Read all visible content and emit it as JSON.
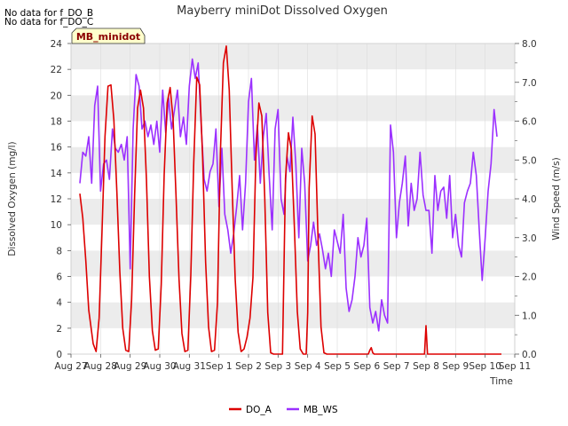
{
  "chart_data": {
    "type": "line",
    "title": "Mayberry miniDot Dissolved Oxygen",
    "no_data_notes": [
      "No data for f_DO_B",
      "No data for f_DO_C"
    ],
    "site_label": "MB_minidot",
    "xlabel": "Time",
    "ylabel_left": "Dissolved Oxygen (mg/l)",
    "ylabel_right": "Wind Speed (m/s)",
    "xlim": [
      0,
      15
    ],
    "ylim_left": [
      0,
      24
    ],
    "ylim_right": [
      0,
      8
    ],
    "x_ticks": [
      {
        "x": 0,
        "label": "Aug 27"
      },
      {
        "x": 1,
        "label": "Aug 28"
      },
      {
        "x": 2,
        "label": "Aug 29"
      },
      {
        "x": 3,
        "label": "Aug 30"
      },
      {
        "x": 4,
        "label": "Aug 31"
      },
      {
        "x": 5,
        "label": "Sep 1"
      },
      {
        "x": 6,
        "label": "Sep 2"
      },
      {
        "x": 7,
        "label": "Sep 3"
      },
      {
        "x": 8,
        "label": "Sep 4"
      },
      {
        "x": 9,
        "label": "Sep 5"
      },
      {
        "x": 10,
        "label": "Sep 6"
      },
      {
        "x": 11,
        "label": "Sep 7"
      },
      {
        "x": 12,
        "label": "Sep 8"
      },
      {
        "x": 13,
        "label": "Sep 9"
      },
      {
        "x": 14,
        "label": "Sep 10"
      },
      {
        "x": 15,
        "label": "Sep 11"
      }
    ],
    "y_ticks_left": [
      "0",
      "2",
      "4",
      "6",
      "8",
      "10",
      "12",
      "14",
      "16",
      "18",
      "20",
      "22",
      "24"
    ],
    "y_ticks_right": [
      "0.0",
      "1.0",
      "2.0",
      "3.0",
      "4.0",
      "5.0",
      "6.0",
      "7.0",
      "8.0"
    ],
    "grid": "horizontal bands",
    "legend_position": "bottom-center",
    "series": [
      {
        "name": "DO_A",
        "axis": "left",
        "color": "#dd0000",
        "x": [
          0.3,
          0.4,
          0.5,
          0.6,
          0.75,
          0.85,
          0.95,
          1.05,
          1.15,
          1.25,
          1.35,
          1.45,
          1.55,
          1.65,
          1.75,
          1.85,
          1.95,
          2.05,
          2.15,
          2.25,
          2.35,
          2.45,
          2.55,
          2.65,
          2.75,
          2.85,
          2.95,
          3.05,
          3.15,
          3.25,
          3.35,
          3.45,
          3.55,
          3.65,
          3.75,
          3.85,
          3.95,
          4.05,
          4.15,
          4.25,
          4.35,
          4.45,
          4.55,
          4.65,
          4.75,
          4.85,
          4.95,
          5.05,
          5.15,
          5.25,
          5.35,
          5.45,
          5.55,
          5.65,
          5.75,
          5.85,
          5.95,
          6.05,
          6.15,
          6.25,
          6.35,
          6.45,
          6.55,
          6.65,
          6.75,
          6.85,
          6.95,
          7.05,
          7.15,
          7.25,
          7.35,
          7.45,
          7.55,
          7.65,
          7.75,
          7.85,
          7.95,
          8.0,
          8.05,
          8.15,
          8.25,
          8.35,
          8.45,
          8.55,
          8.65,
          8.75,
          8.85,
          8.95,
          9.05,
          9.15,
          9.25,
          9.35,
          9.45,
          9.55,
          9.65,
          9.75,
          9.85,
          9.95,
          10.05,
          10.1,
          10.15,
          10.2,
          10.25,
          10.35,
          10.45,
          10.55,
          10.65,
          10.75,
          10.85,
          10.95,
          11.05,
          11.15,
          11.25,
          11.35,
          11.45,
          11.55,
          11.65,
          11.75,
          11.85,
          11.95,
          12.0,
          12.05,
          12.15,
          12.25,
          12.35,
          12.45,
          12.55,
          12.65,
          12.75,
          12.85,
          12.95,
          13.05,
          13.15,
          13.25,
          13.35,
          13.45,
          13.55,
          13.65,
          13.75,
          13.85,
          13.95,
          14.05,
          14.15,
          14.25,
          14.35,
          14.45,
          14.55
        ],
        "values": [
          12.4,
          10.5,
          7.2,
          3.4,
          0.8,
          0.2,
          2.8,
          9.6,
          16.8,
          20.7,
          20.8,
          18.1,
          12.5,
          6.4,
          2.0,
          0.3,
          0.2,
          4.2,
          12.3,
          19.0,
          20.4,
          19.0,
          13.5,
          6.0,
          1.8,
          0.3,
          0.4,
          5.4,
          13.9,
          19.4,
          20.6,
          18.2,
          12.3,
          5.8,
          1.6,
          0.2,
          0.3,
          6.1,
          14.8,
          21.4,
          20.8,
          15.2,
          7.1,
          2.1,
          0.2,
          0.3,
          3.9,
          15.5,
          22.5,
          23.8,
          20.4,
          12.6,
          5.8,
          1.7,
          0.2,
          0.4,
          1.3,
          2.8,
          5.9,
          15.2,
          19.4,
          18.4,
          12.1,
          3.2,
          0.1,
          0.0,
          0.0,
          0.0,
          0.0,
          13.6,
          17.1,
          15.8,
          9.8,
          3.3,
          0.4,
          0.0,
          0.0,
          3.2,
          12.8,
          18.4,
          17.0,
          9.1,
          2.1,
          0.1,
          0.0,
          0.0,
          0.0,
          0.0,
          0.0,
          0.0,
          0.0,
          0.0,
          0.0,
          0.0,
          0.0,
          0.0,
          0.0,
          0.0,
          0.0,
          0.3,
          0.5,
          0.1,
          0.0,
          0.0,
          0.0,
          0.0,
          0.0,
          0.0,
          0.0,
          0.0,
          0.0,
          0.0,
          0.0,
          0.0,
          0.0,
          0.0,
          0.0,
          0.0,
          0.0,
          0.0,
          2.2,
          0.0,
          0.0,
          0.0,
          0.0,
          0.0,
          0.0,
          0.0,
          0.0,
          0.0,
          0.0,
          0.0,
          0.0,
          0.0,
          0.0,
          0.0,
          0.0,
          0.0,
          0.0,
          0.0,
          0.0,
          0.0,
          0.0,
          0.0,
          0.0,
          0.0,
          0.0
        ]
      },
      {
        "name": "MB_WS",
        "axis": "right",
        "color": "#9b30ff",
        "x": [
          0.3,
          0.4,
          0.5,
          0.6,
          0.7,
          0.8,
          0.9,
          1.0,
          1.1,
          1.2,
          1.3,
          1.4,
          1.5,
          1.6,
          1.7,
          1.8,
          1.9,
          2.0,
          2.1,
          2.2,
          2.3,
          2.4,
          2.5,
          2.6,
          2.7,
          2.8,
          2.9,
          3.0,
          3.1,
          3.2,
          3.3,
          3.4,
          3.5,
          3.6,
          3.7,
          3.8,
          3.9,
          4.0,
          4.1,
          4.2,
          4.3,
          4.4,
          4.5,
          4.6,
          4.7,
          4.8,
          4.9,
          5.0,
          5.1,
          5.2,
          5.3,
          5.4,
          5.5,
          5.6,
          5.7,
          5.8,
          5.9,
          6.0,
          6.1,
          6.2,
          6.3,
          6.4,
          6.5,
          6.6,
          6.7,
          6.8,
          6.9,
          7.0,
          7.1,
          7.2,
          7.3,
          7.4,
          7.5,
          7.6,
          7.7,
          7.8,
          7.9,
          8.0,
          8.1,
          8.2,
          8.3,
          8.4,
          8.5,
          8.6,
          8.7,
          8.8,
          8.9,
          9.0,
          9.1,
          9.2,
          9.3,
          9.4,
          9.5,
          9.6,
          9.7,
          9.8,
          9.9,
          10.0,
          10.1,
          10.2,
          10.3,
          10.4,
          10.5,
          10.6,
          10.7,
          10.8,
          10.9,
          11.0,
          11.1,
          11.2,
          11.3,
          11.4,
          11.5,
          11.6,
          11.7,
          11.8,
          11.9,
          12.0,
          12.1,
          12.2,
          12.3,
          12.4,
          12.5,
          12.6,
          12.7,
          12.8,
          12.9,
          13.0,
          13.1,
          13.2,
          13.3,
          13.4,
          13.5,
          13.6,
          13.7,
          13.8,
          13.9,
          14.0,
          14.1,
          14.2,
          14.3,
          14.4
        ],
        "values": [
          4.4,
          5.2,
          5.1,
          5.6,
          4.4,
          6.4,
          6.9,
          4.2,
          4.9,
          5.0,
          4.5,
          5.8,
          5.3,
          5.2,
          5.4,
          5.0,
          5.6,
          2.2,
          5.8,
          7.2,
          6.9,
          5.8,
          6.0,
          5.6,
          5.9,
          5.4,
          6.0,
          5.2,
          6.8,
          5.7,
          6.6,
          5.8,
          6.3,
          6.8,
          5.6,
          6.1,
          5.4,
          6.9,
          7.6,
          7.1,
          7.5,
          5.9,
          4.5,
          4.2,
          4.7,
          4.9,
          5.8,
          3.8,
          5.3,
          3.6,
          3.2,
          2.6,
          3.1,
          3.8,
          4.6,
          3.2,
          4.4,
          6.5,
          7.1,
          5.0,
          5.9,
          4.4,
          5.6,
          6.2,
          4.6,
          3.2,
          5.8,
          6.3,
          4.0,
          3.6,
          5.1,
          4.7,
          6.1,
          4.9,
          3.0,
          5.3,
          4.4,
          2.4,
          2.8,
          3.4,
          2.8,
          3.1,
          2.7,
          2.2,
          2.6,
          2.0,
          3.2,
          2.9,
          2.6,
          3.6,
          1.7,
          1.1,
          1.4,
          2.0,
          3.0,
          2.5,
          2.8,
          3.5,
          1.2,
          0.8,
          1.1,
          0.6,
          1.4,
          1.0,
          0.8,
          5.9,
          5.2,
          3.0,
          3.9,
          4.4,
          5.1,
          3.3,
          4.4,
          3.7,
          4.0,
          5.2,
          4.1,
          3.7,
          3.7,
          2.6,
          4.6,
          3.7,
          4.2,
          4.3,
          3.5,
          4.6,
          3.0,
          3.6,
          2.8,
          2.5,
          3.9,
          4.2,
          4.4,
          5.2,
          4.6,
          3.2,
          1.9,
          3.0,
          4.2,
          4.9,
          6.3,
          5.6
        ]
      }
    ]
  }
}
